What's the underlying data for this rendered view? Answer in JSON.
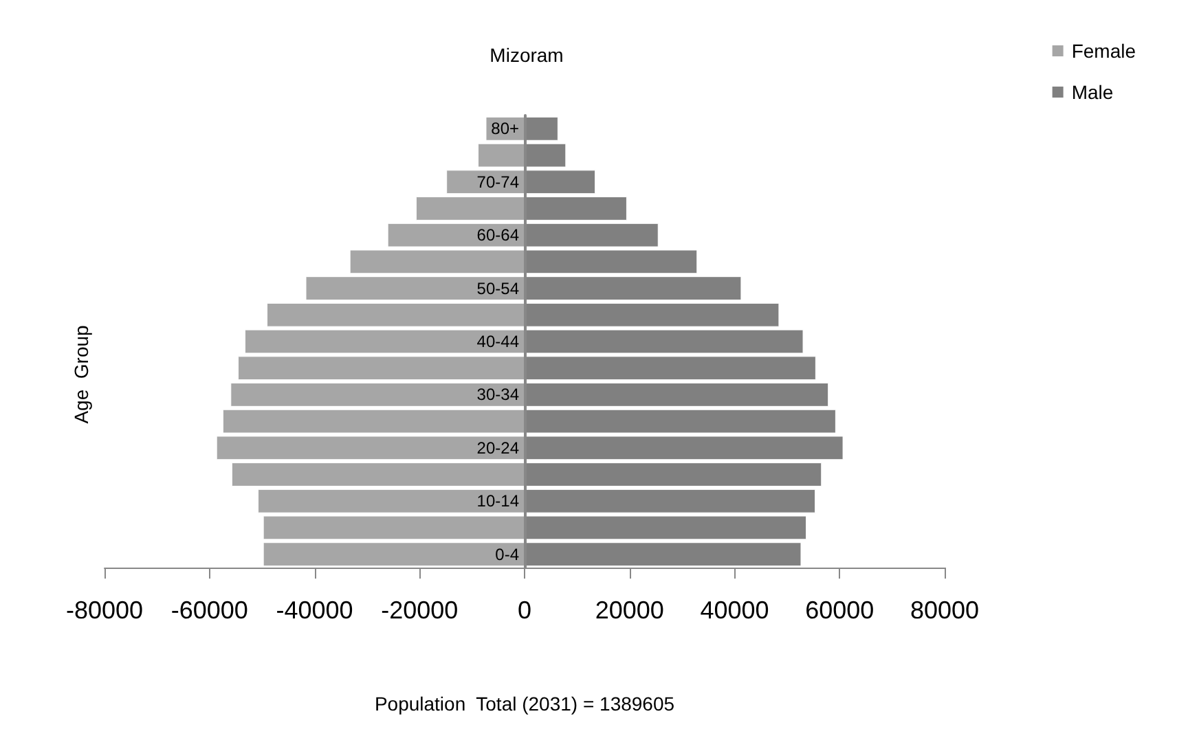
{
  "chart_data": {
    "type": "bar",
    "orientation": "horizontal",
    "stacked": true,
    "title": "Mizoram",
    "ylabel": "Age  Group",
    "xlabel": "Population  Total (2031) = 1389605",
    "categories": [
      "80+",
      null,
      "70-74",
      null,
      "60-64",
      null,
      "50-54",
      null,
      "40-44",
      null,
      "30-34",
      null,
      "20-24",
      null,
      "10-14",
      null,
      "0-4"
    ],
    "series": [
      {
        "name": "Female",
        "color": "#a6a6a6",
        "values": [
          -7400,
          -8900,
          -14900,
          -20700,
          -26100,
          -33300,
          -41700,
          -49100,
          -53300,
          -54600,
          -56000,
          -57500,
          -58700,
          -55800,
          -50800,
          -49800,
          -49800
        ]
      },
      {
        "name": "Male",
        "color": "#808080",
        "values": [
          6400,
          7900,
          13500,
          19500,
          25500,
          32900,
          41300,
          48500,
          53100,
          55500,
          57900,
          59300,
          60700,
          56600,
          55400,
          53700,
          52700
        ]
      }
    ],
    "xlim": [
      -80000,
      80000
    ],
    "xticks": [
      -80000,
      -60000,
      -40000,
      -20000,
      0,
      20000,
      40000,
      60000,
      80000
    ],
    "grid": false,
    "legend": "top right"
  }
}
